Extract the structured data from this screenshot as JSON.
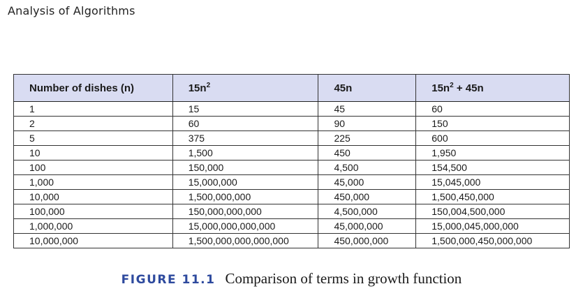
{
  "running_head": "Analysis of Algorithms",
  "table": {
    "headers": {
      "c1": "Number of dishes (n)",
      "c2_base": "15n",
      "c2_exp": "2",
      "c3": "45n",
      "c4_base": "15n",
      "c4_exp": "2",
      "c4_tail": " + 45n"
    },
    "header_bg_color": "#d9dcf2",
    "rows": [
      [
        "1",
        "15",
        "45",
        "60"
      ],
      [
        "2",
        "60",
        "90",
        "150"
      ],
      [
        "5",
        "375",
        "225",
        "600"
      ],
      [
        "10",
        "1,500",
        "450",
        "1,950"
      ],
      [
        "100",
        "150,000",
        "4,500",
        "154,500"
      ],
      [
        "1,000",
        "15,000,000",
        "45,000",
        "15,045,000"
      ],
      [
        "10,000",
        "1,500,000,000",
        "450,000",
        "1,500,450,000"
      ],
      [
        "100,000",
        "150,000,000,000",
        "4,500,000",
        "150,004,500,000"
      ],
      [
        "1,000,000",
        "15,000,000,000,000",
        "45,000,000",
        "15,000,045,000,000"
      ],
      [
        "10,000,000",
        "1,500,000,000,000,000",
        "450,000,000",
        "1,500,000,450,000,000"
      ]
    ]
  },
  "caption": {
    "label": "FIGURE 11.1",
    "label_color": "#2e4a9e",
    "text": "Comparison of terms in growth function"
  }
}
